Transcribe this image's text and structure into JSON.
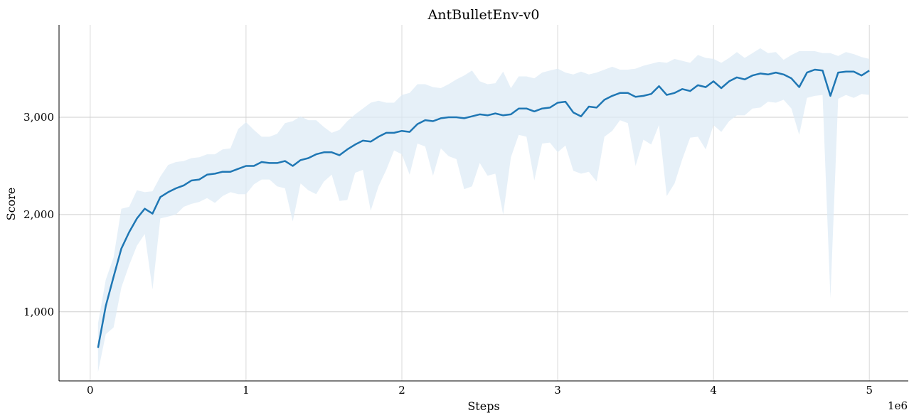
{
  "chart_data": {
    "type": "line",
    "title": "AntBulletEnv-v0",
    "xlabel": "Steps",
    "ylabel": "Score",
    "x_offset_label": "1e6",
    "xlim": [
      -200000,
      5250000
    ],
    "ylim": [
      290,
      3950
    ],
    "x_ticks": [
      0,
      1000000,
      2000000,
      3000000,
      4000000,
      5000000
    ],
    "x_tick_labels": [
      "0",
      "1",
      "2",
      "3",
      "4",
      "5"
    ],
    "y_ticks": [
      1000,
      2000,
      3000
    ],
    "y_tick_labels": [
      "1,000",
      "2,000",
      "3,000"
    ],
    "grid": true,
    "colors": {
      "line": "#1f77b4",
      "band": "#dce9f5"
    },
    "series": [
      {
        "x": [
          50000,
          100000,
          150000,
          200000,
          250000,
          300000,
          350000,
          400000,
          450000,
          500000,
          550000,
          600000,
          650000,
          700000,
          750000,
          800000,
          850000,
          900000,
          950000,
          1000000,
          1050000,
          1100000,
          1150000,
          1200000,
          1250000,
          1300000,
          1350000,
          1400000,
          1450000,
          1500000,
          1550000,
          1600000,
          1650000,
          1700000,
          1750000,
          1800000,
          1850000,
          1900000,
          1950000,
          2000000,
          2050000,
          2100000,
          2150000,
          2200000,
          2250000,
          2300000,
          2350000,
          2400000,
          2450000,
          2500000,
          2550000,
          2600000,
          2650000,
          2700000,
          2750000,
          2800000,
          2850000,
          2900000,
          2950000,
          3000000,
          3050000,
          3100000,
          3150000,
          3200000,
          3250000,
          3300000,
          3350000,
          3400000,
          3450000,
          3500000,
          3550000,
          3600000,
          3650000,
          3700000,
          3750000,
          3800000,
          3850000,
          3900000,
          3950000,
          4000000,
          4050000,
          4100000,
          4150000,
          4200000,
          4250000,
          4300000,
          4350000,
          4400000,
          4450000,
          4500000,
          4550000,
          4600000,
          4650000,
          4700000,
          4750000,
          4800000,
          4850000,
          4900000,
          4950000,
          5000000
        ],
        "y": [
          630,
          1060,
          1360,
          1650,
          1820,
          1960,
          2060,
          2010,
          2180,
          2230,
          2270,
          2300,
          2350,
          2360,
          2410,
          2420,
          2440,
          2440,
          2470,
          2500,
          2500,
          2540,
          2530,
          2530,
          2550,
          2500,
          2560,
          2580,
          2620,
          2640,
          2640,
          2610,
          2670,
          2720,
          2760,
          2750,
          2800,
          2840,
          2840,
          2860,
          2850,
          2930,
          2970,
          2960,
          2990,
          3000,
          3000,
          2990,
          3010,
          3030,
          3020,
          3040,
          3020,
          3030,
          3090,
          3090,
          3060,
          3090,
          3100,
          3150,
          3160,
          3050,
          3010,
          3110,
          3100,
          3180,
          3220,
          3250,
          3250,
          3210,
          3220,
          3240,
          3320,
          3230,
          3250,
          3290,
          3270,
          3330,
          3310,
          3370,
          3300,
          3370,
          3410,
          3390,
          3430,
          3450,
          3440,
          3460,
          3440,
          3400,
          3310,
          3460,
          3490,
          3480,
          3220,
          3460,
          3470,
          3470,
          3430,
          3480
        ],
        "lower": [
          380,
          770,
          840,
          1250,
          1480,
          1680,
          1800,
          1230,
          1960,
          1980,
          2000,
          2080,
          2110,
          2130,
          2170,
          2120,
          2190,
          2230,
          2210,
          2210,
          2310,
          2360,
          2360,
          2290,
          2270,
          1930,
          2320,
          2250,
          2210,
          2340,
          2410,
          2140,
          2150,
          2430,
          2460,
          2040,
          2290,
          2460,
          2660,
          2620,
          2410,
          2730,
          2700,
          2400,
          2680,
          2600,
          2570,
          2260,
          2290,
          2530,
          2400,
          2420,
          2000,
          2590,
          2820,
          2800,
          2350,
          2730,
          2740,
          2640,
          2710,
          2450,
          2420,
          2440,
          2340,
          2800,
          2860,
          2970,
          2940,
          2500,
          2770,
          2720,
          2920,
          2190,
          2320,
          2570,
          2790,
          2800,
          2670,
          2920,
          2850,
          2960,
          3020,
          3020,
          3090,
          3100,
          3160,
          3150,
          3180,
          3090,
          2820,
          3200,
          3220,
          3230,
          1140,
          3190,
          3230,
          3200,
          3240,
          3230
        ],
        "upper": [
          880,
          1330,
          1560,
          2060,
          2080,
          2250,
          2230,
          2240,
          2390,
          2510,
          2540,
          2550,
          2580,
          2590,
          2620,
          2620,
          2670,
          2680,
          2880,
          2950,
          2870,
          2800,
          2800,
          2830,
          2940,
          2960,
          3010,
          2970,
          2970,
          2900,
          2840,
          2870,
          2960,
          3030,
          3090,
          3150,
          3170,
          3150,
          3150,
          3230,
          3250,
          3340,
          3340,
          3310,
          3300,
          3340,
          3390,
          3430,
          3480,
          3370,
          3340,
          3350,
          3470,
          3300,
          3420,
          3420,
          3400,
          3460,
          3480,
          3500,
          3460,
          3440,
          3470,
          3440,
          3460,
          3490,
          3520,
          3490,
          3490,
          3500,
          3530,
          3550,
          3570,
          3560,
          3600,
          3580,
          3560,
          3640,
          3610,
          3600,
          3560,
          3610,
          3670,
          3610,
          3660,
          3710,
          3660,
          3670,
          3590,
          3640,
          3680,
          3680,
          3680,
          3660,
          3660,
          3630,
          3670,
          3650,
          3620,
          3600
        ]
      }
    ]
  }
}
